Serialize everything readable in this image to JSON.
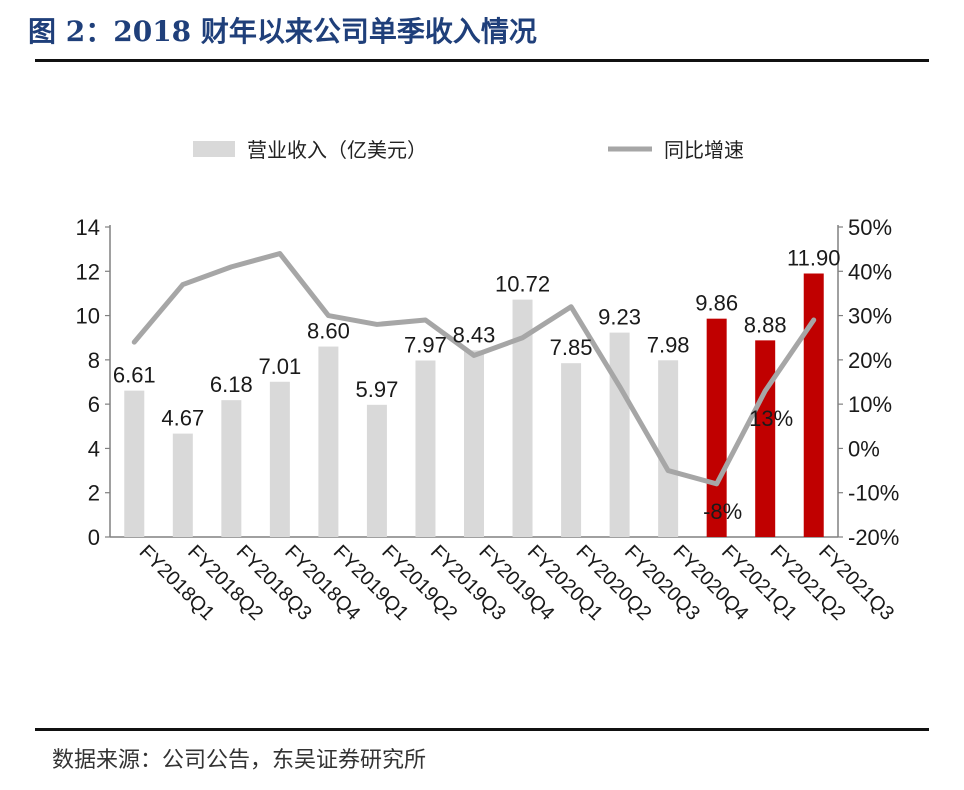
{
  "title": "图 2：2018 财年以来公司单季收入情况",
  "source": "数据来源：公司公告，东吴证券研究所",
  "colors": {
    "title": "#1f3f7a",
    "bar_default": "#d9d9d9",
    "bar_highlight": "#c00000",
    "line": "#a6a6a6"
  },
  "chart_data": {
    "type": "bar",
    "categories": [
      "FY2018Q1",
      "FY2018Q2",
      "FY2018Q3",
      "FY2018Q4",
      "FY2019Q1",
      "FY2019Q2",
      "FY2019Q3",
      "FY2019Q4",
      "FY2020Q1",
      "FY2020Q2",
      "FY2020Q3",
      "FY2020Q4",
      "FY2021Q1",
      "FY2021Q2",
      "FY2021Q3"
    ],
    "series": [
      {
        "name": "营业收入（亿美元）",
        "type": "bar",
        "axis": "left",
        "values": [
          6.61,
          4.67,
          6.18,
          7.01,
          8.6,
          5.97,
          7.97,
          8.43,
          10.72,
          7.85,
          9.23,
          7.98,
          9.86,
          8.88,
          11.9
        ],
        "labels": [
          "6.61",
          "4.67",
          "6.18",
          "7.01",
          "8.60",
          "5.97",
          "7.97",
          "8.43",
          "10.72",
          "7.85",
          "9.23",
          "7.98",
          "9.86",
          "8.88",
          "11.90"
        ],
        "highlight": [
          false,
          false,
          false,
          false,
          false,
          false,
          false,
          false,
          false,
          false,
          false,
          false,
          true,
          true,
          true
        ]
      },
      {
        "name": "同比增速",
        "type": "line",
        "axis": "right",
        "values": [
          24,
          37,
          41,
          44,
          30,
          28,
          29,
          21,
          25,
          32,
          14,
          -5,
          -8,
          13,
          29
        ],
        "shown_labels": [
          null,
          null,
          null,
          null,
          null,
          null,
          null,
          null,
          null,
          null,
          null,
          null,
          "-8%",
          "13%",
          null
        ]
      }
    ],
    "y_left": {
      "ticks": [
        "0",
        "2",
        "4",
        "6",
        "8",
        "10",
        "12",
        "14"
      ],
      "ylim": [
        0,
        14
      ]
    },
    "y_right": {
      "ticks": [
        "-20%",
        "-10%",
        "0%",
        "10%",
        "20%",
        "30%",
        "40%",
        "50%"
      ],
      "ylim": [
        -20,
        50
      ]
    },
    "legend_position": "top",
    "grid": false
  }
}
